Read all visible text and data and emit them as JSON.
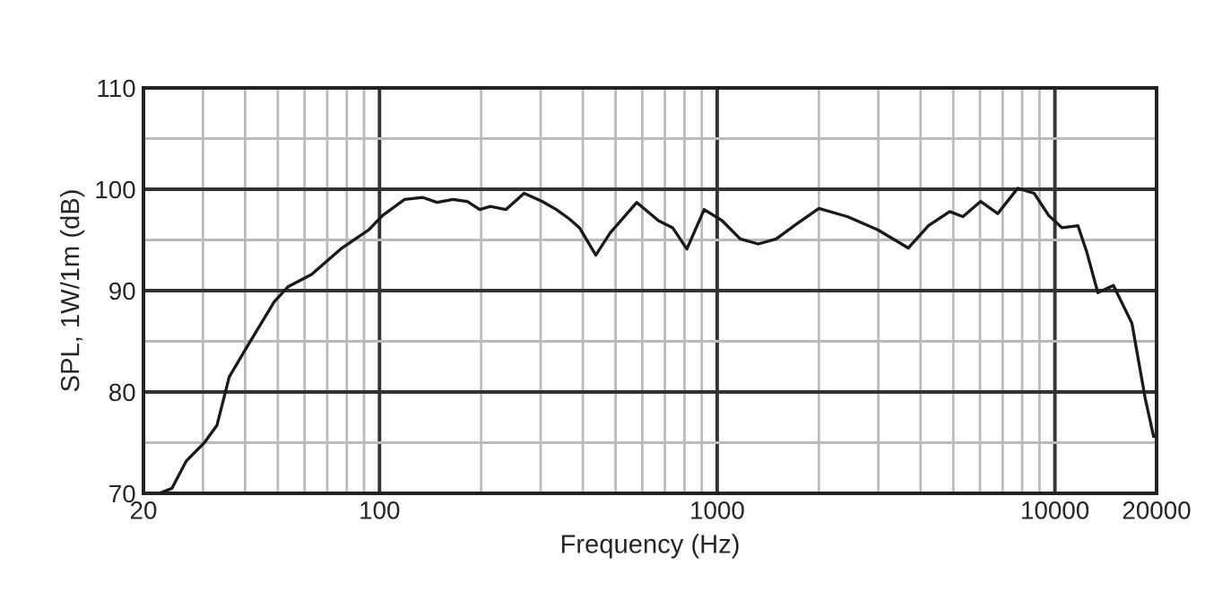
{
  "chart_data": {
    "type": "line",
    "xlabel": "Frequency (Hz)",
    "ylabel": "SPL, 1W/1m (dB)",
    "log": "x",
    "grid": true,
    "marker": "none",
    "line_style": "solid",
    "xlim": [
      20,
      20000
    ],
    "ylim": [
      70,
      110
    ],
    "xticks": [
      20,
      {
        "value": 30,
        "label": null
      },
      {
        "value": 40,
        "label": null
      },
      {
        "value": 50,
        "label": null
      },
      {
        "value": 60,
        "label": null
      },
      {
        "value": 70,
        "label": null
      },
      {
        "value": 80,
        "label": null
      },
      {
        "value": 90,
        "label": null
      },
      100,
      {
        "value": 200,
        "label": null
      },
      {
        "value": 300,
        "label": null
      },
      {
        "value": 400,
        "label": null
      },
      {
        "value": 500,
        "label": null
      },
      {
        "value": 600,
        "label": null
      },
      {
        "value": 700,
        "label": null
      },
      {
        "value": 800,
        "label": null
      },
      {
        "value": 900,
        "label": null
      },
      1000,
      {
        "value": 2000,
        "label": null
      },
      {
        "value": 3000,
        "label": null
      },
      {
        "value": 4000,
        "label": null
      },
      {
        "value": 5000,
        "label": null
      },
      {
        "value": 6000,
        "label": null
      },
      {
        "value": 7000,
        "label": null
      },
      {
        "value": 8000,
        "label": null
      },
      {
        "value": 9000,
        "label": null
      },
      10000,
      20000
    ],
    "yticks": [
      70,
      {
        "value": 75,
        "label": null
      },
      80,
      {
        "value": 85,
        "label": null
      },
      90,
      {
        "value": 95,
        "label": null
      },
      100,
      {
        "value": 105,
        "label": null
      },
      110
    ],
    "series": [
      {
        "color": "#1a1a1a",
        "x": [
          22.3,
          24.3,
          26.8,
          30.3,
          33,
          35.9,
          40.6,
          48.8,
          53.7,
          62.9,
          77.4,
          93,
          102,
          118.6,
          134,
          148,
          165,
          182,
          198,
          213,
          237,
          268,
          303,
          334,
          364,
          391,
          437,
          482,
          578,
          670,
          738,
          813,
          915,
          1034,
          1170,
          1323,
          1495,
          1690,
          2000,
          2430,
          2990,
          3680,
          4220,
          4880,
          5340,
          6030,
          6770,
          7760,
          8680,
          9590,
          10500,
          11700,
          12400,
          13400,
          14900,
          16900,
          18500,
          19600
        ],
        "values": [
          70,
          70.5,
          73.2,
          75.0,
          76.7,
          81.5,
          84.5,
          88.9,
          90.4,
          91.6,
          94.2,
          96.0,
          97.4,
          99.0,
          99.2,
          98.7,
          99.0,
          98.8,
          98.0,
          98.3,
          98.0,
          99.6,
          98.8,
          98.0,
          97.1,
          96.2,
          93.5,
          95.7,
          98.7,
          96.9,
          96.2,
          94.1,
          98.0,
          96.9,
          95.1,
          94.6,
          95.1,
          96.4,
          98.1,
          97.3,
          96.0,
          94.2,
          96.4,
          97.8,
          97.3,
          98.8,
          97.6,
          100.1,
          99.6,
          97.4,
          96.2,
          96.4,
          93.9,
          89.8,
          90.5,
          86.8,
          79.4,
          75.6
        ]
      }
    ]
  }
}
